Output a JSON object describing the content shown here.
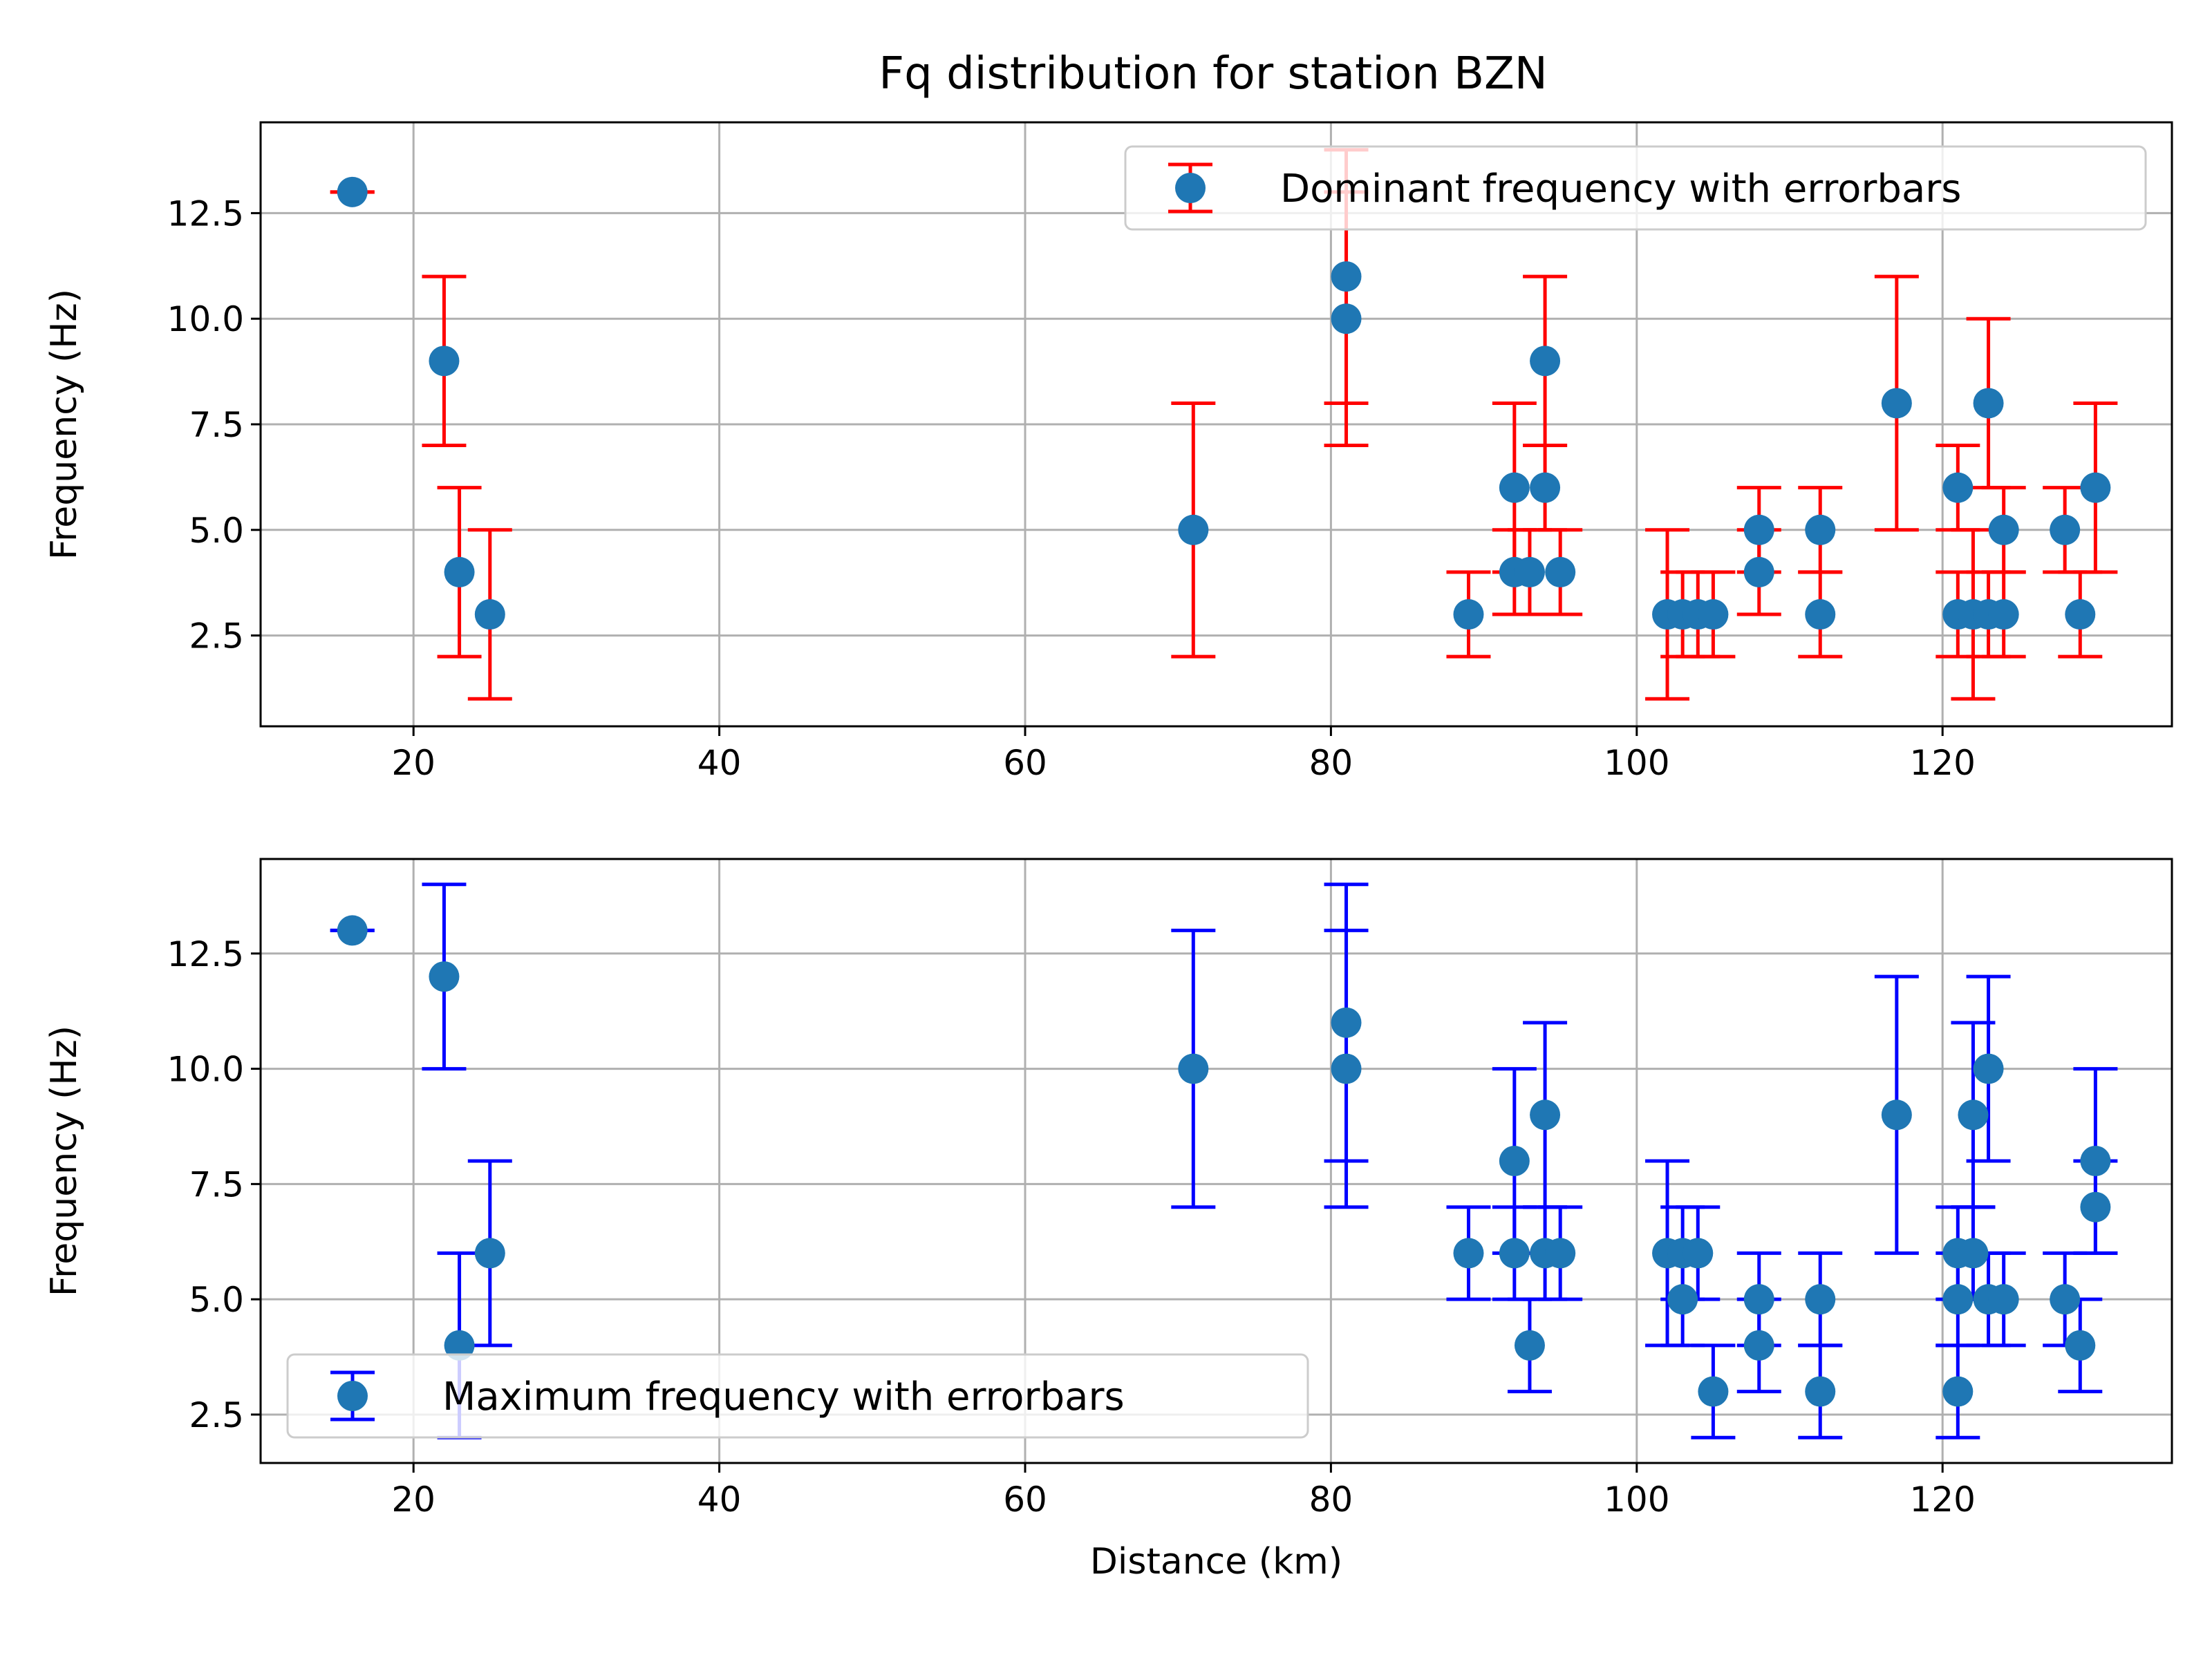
{
  "title": "Fq distribution for station BZN",
  "chart_data": [
    {
      "type": "scatter",
      "title": "Fq distribution for station BZN",
      "xlabel": "",
      "ylabel": "Frequency (Hz)",
      "xlim": [
        10,
        135
      ],
      "ylim": [
        0.35,
        14.65
      ],
      "xticks": [
        "20",
        "40",
        "60",
        "80",
        "100",
        "120"
      ],
      "yticks": [
        "2.5",
        "5.0",
        "7.5",
        "10.0",
        "12.5"
      ],
      "grid": true,
      "legend": {
        "label": "Dominant frequency with errorbars",
        "position": "top-right"
      },
      "colors": {
        "marker": "#1f77b4",
        "errorbar": "#ff0000"
      },
      "series": [
        {
          "name": "Dominant frequency with errorbars",
          "points": [
            {
              "x": 16,
              "y": 13,
              "low": 13,
              "high": 13
            },
            {
              "x": 22,
              "y": 9,
              "low": 7,
              "high": 11
            },
            {
              "x": 23,
              "y": 4,
              "low": 2,
              "high": 6
            },
            {
              "x": 25,
              "y": 3,
              "low": 1,
              "high": 5
            },
            {
              "x": 71,
              "y": 5,
              "low": 2,
              "high": 8
            },
            {
              "x": 81,
              "y": 11,
              "low": 8,
              "high": 14
            },
            {
              "x": 81,
              "y": 10,
              "low": 7,
              "high": 13
            },
            {
              "x": 89,
              "y": 3,
              "low": 2,
              "high": 4
            },
            {
              "x": 92,
              "y": 6,
              "low": 4,
              "high": 8
            },
            {
              "x": 92,
              "y": 4,
              "low": 3,
              "high": 5
            },
            {
              "x": 93,
              "y": 4,
              "low": 3,
              "high": 5
            },
            {
              "x": 94,
              "y": 9,
              "low": 7,
              "high": 11
            },
            {
              "x": 94,
              "y": 6,
              "low": 5,
              "high": 7
            },
            {
              "x": 95,
              "y": 4,
              "low": 3,
              "high": 5
            },
            {
              "x": 102,
              "y": 3,
              "low": 1,
              "high": 5
            },
            {
              "x": 103,
              "y": 3,
              "low": 2,
              "high": 4
            },
            {
              "x": 104,
              "y": 3,
              "low": 2,
              "high": 4
            },
            {
              "x": 105,
              "y": 3,
              "low": 2,
              "high": 4
            },
            {
              "x": 108,
              "y": 5,
              "low": 4,
              "high": 6
            },
            {
              "x": 108,
              "y": 4,
              "low": 3,
              "high": 5
            },
            {
              "x": 112,
              "y": 5,
              "low": 4,
              "high": 6
            },
            {
              "x": 112,
              "y": 3,
              "low": 2,
              "high": 4
            },
            {
              "x": 117,
              "y": 8,
              "low": 5,
              "high": 11
            },
            {
              "x": 121,
              "y": 6,
              "low": 5,
              "high": 7
            },
            {
              "x": 121,
              "y": 3,
              "low": 2,
              "high": 4
            },
            {
              "x": 122,
              "y": 3,
              "low": 1,
              "high": 5
            },
            {
              "x": 123,
              "y": 8,
              "low": 6,
              "high": 10
            },
            {
              "x": 123,
              "y": 3,
              "low": 2,
              "high": 4
            },
            {
              "x": 124,
              "y": 5,
              "low": 4,
              "high": 6
            },
            {
              "x": 124,
              "y": 3,
              "low": 2,
              "high": 4
            },
            {
              "x": 128,
              "y": 5,
              "low": 4,
              "high": 6
            },
            {
              "x": 129,
              "y": 3,
              "low": 2,
              "high": 4
            },
            {
              "x": 130,
              "y": 6,
              "low": 4,
              "high": 8
            }
          ]
        }
      ]
    },
    {
      "type": "scatter",
      "title": "",
      "xlabel": "Distance (km)",
      "ylabel": "Frequency (Hz)",
      "xlim": [
        10,
        135
      ],
      "ylim": [
        1.45,
        14.55
      ],
      "xticks": [
        "20",
        "40",
        "60",
        "80",
        "100",
        "120"
      ],
      "yticks": [
        "2.5",
        "5.0",
        "7.5",
        "10.0",
        "12.5"
      ],
      "grid": true,
      "legend": {
        "label": "Maximum frequency with errorbars",
        "position": "bottom-left"
      },
      "colors": {
        "marker": "#1f77b4",
        "errorbar": "#0000ff"
      },
      "series": [
        {
          "name": "Maximum frequency with errorbars",
          "points": [
            {
              "x": 16,
              "y": 13,
              "low": 13,
              "high": 13
            },
            {
              "x": 22,
              "y": 12,
              "low": 10,
              "high": 14
            },
            {
              "x": 23,
              "y": 4,
              "low": 2,
              "high": 6
            },
            {
              "x": 25,
              "y": 6,
              "low": 4,
              "high": 8
            },
            {
              "x": 71,
              "y": 10,
              "low": 7,
              "high": 13
            },
            {
              "x": 81,
              "y": 11,
              "low": 8,
              "high": 14
            },
            {
              "x": 81,
              "y": 10,
              "low": 7,
              "high": 13
            },
            {
              "x": 89,
              "y": 6,
              "low": 5,
              "high": 7
            },
            {
              "x": 92,
              "y": 8,
              "low": 6,
              "high": 10
            },
            {
              "x": 92,
              "y": 6,
              "low": 5,
              "high": 7
            },
            {
              "x": 93,
              "y": 4,
              "low": 3,
              "high": 5
            },
            {
              "x": 94,
              "y": 9,
              "low": 7,
              "high": 11
            },
            {
              "x": 94,
              "y": 6,
              "low": 5,
              "high": 7
            },
            {
              "x": 95,
              "y": 6,
              "low": 5,
              "high": 7
            },
            {
              "x": 102,
              "y": 6,
              "low": 4,
              "high": 8
            },
            {
              "x": 103,
              "y": 6,
              "low": 5,
              "high": 7
            },
            {
              "x": 103,
              "y": 5,
              "low": 4,
              "high": 6
            },
            {
              "x": 104,
              "y": 6,
              "low": 5,
              "high": 7
            },
            {
              "x": 105,
              "y": 3,
              "low": 2,
              "high": 4
            },
            {
              "x": 108,
              "y": 5,
              "low": 4,
              "high": 6
            },
            {
              "x": 108,
              "y": 4,
              "low": 3,
              "high": 5
            },
            {
              "x": 112,
              "y": 5,
              "low": 4,
              "high": 6
            },
            {
              "x": 112,
              "y": 3,
              "low": 2,
              "high": 4
            },
            {
              "x": 117,
              "y": 9,
              "low": 6,
              "high": 12
            },
            {
              "x": 121,
              "y": 6,
              "low": 5,
              "high": 7
            },
            {
              "x": 121,
              "y": 5,
              "low": 4,
              "high": 6
            },
            {
              "x": 121,
              "y": 3,
              "low": 2,
              "high": 4
            },
            {
              "x": 122,
              "y": 9,
              "low": 7,
              "high": 11
            },
            {
              "x": 122,
              "y": 6,
              "low": 5,
              "high": 7
            },
            {
              "x": 123,
              "y": 10,
              "low": 8,
              "high": 12
            },
            {
              "x": 123,
              "y": 5,
              "low": 4,
              "high": 6
            },
            {
              "x": 124,
              "y": 5,
              "low": 4,
              "high": 6
            },
            {
              "x": 128,
              "y": 5,
              "low": 4,
              "high": 6
            },
            {
              "x": 129,
              "y": 4,
              "low": 3,
              "high": 5
            },
            {
              "x": 130,
              "y": 8,
              "low": 6,
              "high": 10
            },
            {
              "x": 130,
              "y": 7,
              "low": 6,
              "high": 8
            }
          ]
        }
      ]
    }
  ]
}
